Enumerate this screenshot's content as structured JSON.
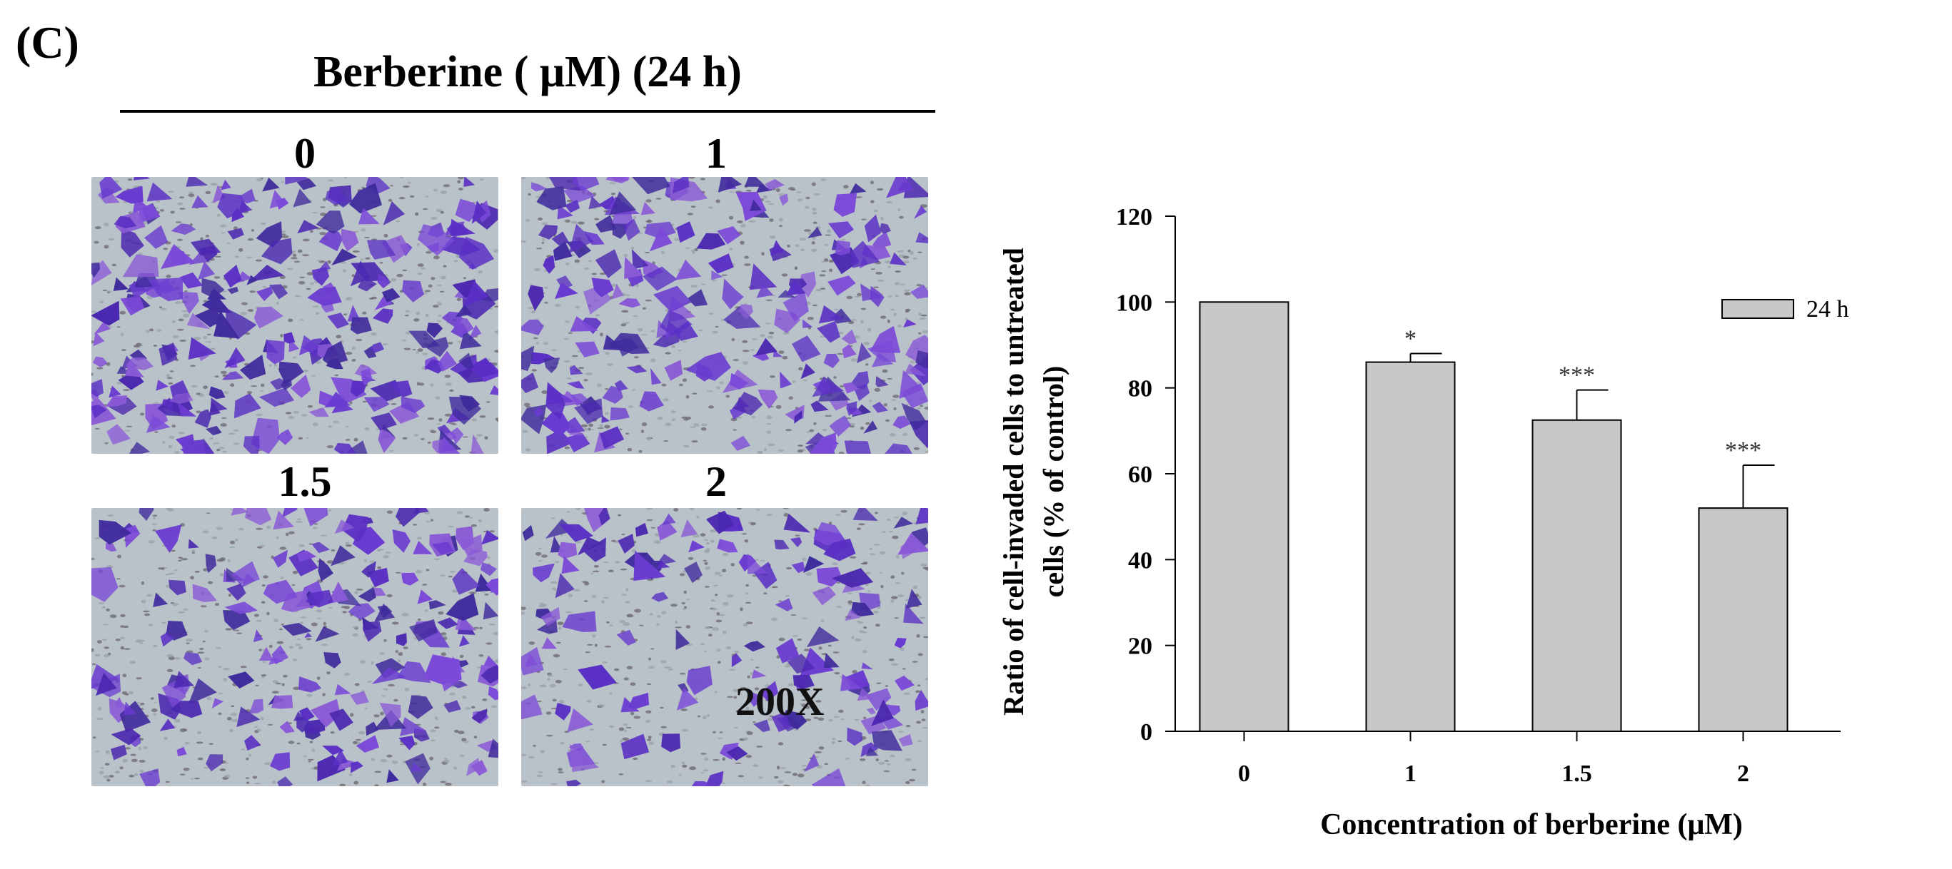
{
  "figure": {
    "panel_label": "(C)",
    "treatment_title": "Berberine ( μM)  (24 h)",
    "magnification_label": "200X",
    "images": [
      {
        "label": "0",
        "density": 1.0
      },
      {
        "label": "1",
        "density": 0.86
      },
      {
        "label": "1.5",
        "density": 0.72
      },
      {
        "label": "2",
        "density": 0.52
      }
    ]
  },
  "chart_data": {
    "type": "bar",
    "title": "",
    "xlabel": "Concentration of berberine (μM)",
    "ylabel_lines": [
      "Ratio of cell-invaded cells to untreated",
      "cells (% of control)"
    ],
    "categories": [
      "0",
      "1",
      "1.5",
      "2"
    ],
    "series": [
      {
        "name": "24 h",
        "values": [
          100,
          86,
          72.5,
          52
        ],
        "errors": [
          0,
          2,
          7,
          10
        ],
        "significance": [
          "",
          "*",
          "***",
          "***"
        ]
      }
    ],
    "ylim": [
      0,
      120
    ],
    "yticks": [
      0,
      20,
      40,
      60,
      80,
      100,
      120
    ],
    "grid": false,
    "legend_position": "top-right",
    "bar_color": "#c8c8c8",
    "edge_color": "#000000"
  }
}
